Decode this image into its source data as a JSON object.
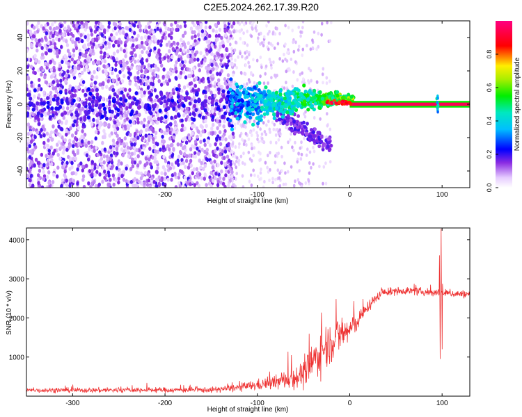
{
  "title": "C2E5.2024.262.17.39.R20",
  "chart_data": [
    {
      "type": "heatmap",
      "xlabel": "Height of straight line (km)",
      "ylabel": "Frequency (Hz)",
      "xlim": [
        -350,
        130
      ],
      "ylim": [
        -50,
        50
      ],
      "x_ticks": [
        -300,
        -200,
        -100,
        0,
        100
      ],
      "y_ticks": [
        -40,
        -20,
        0,
        20,
        40
      ],
      "colorbar": {
        "label": "Normalized spectral amplitude",
        "range": [
          0,
          1
        ],
        "ticks": [
          0.0,
          0.2,
          0.4,
          0.6,
          0.8
        ],
        "tick_labels": [
          "0.0",
          "0.2",
          "0.4",
          "0.6",
          "0.8"
        ],
        "colormap": "rainbow (white→violet→blue→cyan→green→yellow→red→magenta)"
      },
      "features": [
        {
          "name": "noise",
          "x_range": [
            -350,
            -125
          ],
          "freq_range": [
            -50,
            50
          ],
          "amplitude": 0.1
        },
        {
          "name": "signal-blob",
          "x_range": [
            -130,
            5
          ],
          "freq_center": 3,
          "amplitude": 0.35
        },
        {
          "name": "tail",
          "x_range": [
            -80,
            -20
          ],
          "freq_range": [
            -25,
            -5
          ],
          "amplitude": 0.15
        },
        {
          "name": "carrier-line",
          "x_range": [
            0,
            130
          ],
          "freq": 0,
          "amplitude": 0.95
        },
        {
          "name": "spike",
          "x": 95,
          "freq_range": [
            -5,
            5
          ],
          "amplitude": 0.4
        }
      ]
    },
    {
      "type": "line",
      "xlabel": "Height of straight line (km)",
      "ylabel": "SNR (10 * v/v)",
      "xlim": [
        -350,
        130
      ],
      "ylim": [
        0,
        4300
      ],
      "x_ticks": [
        -300,
        -200,
        -100,
        0,
        100
      ],
      "y_ticks": [
        1000,
        2000,
        3000,
        4000
      ],
      "color": "#ee3333",
      "profile": [
        {
          "x": -350,
          "y": 150,
          "noise": 60
        },
        {
          "x": -150,
          "y": 160,
          "noise": 70
        },
        {
          "x": -120,
          "y": 220,
          "noise": 100
        },
        {
          "x": -80,
          "y": 350,
          "noise": 180
        },
        {
          "x": -50,
          "y": 550,
          "noise": 350
        },
        {
          "x": -30,
          "y": 1200,
          "noise": 600
        },
        {
          "x": -15,
          "y": 1500,
          "noise": 500
        },
        {
          "x": 0,
          "y": 1700,
          "noise": 400
        },
        {
          "x": 10,
          "y": 1950,
          "noise": 200
        },
        {
          "x": 20,
          "y": 2300,
          "noise": 150
        },
        {
          "x": 35,
          "y": 2650,
          "noise": 100
        },
        {
          "x": 60,
          "y": 2700,
          "noise": 100
        },
        {
          "x": 90,
          "y": 2650,
          "noise": 100
        },
        {
          "x": 130,
          "y": 2600,
          "noise": 100
        }
      ],
      "spikes": [
        {
          "x": 97,
          "y": 3600
        },
        {
          "x": 98,
          "y": 950
        },
        {
          "x": 99,
          "y": 4280
        },
        {
          "x": 100,
          "y": 1200
        }
      ]
    }
  ]
}
